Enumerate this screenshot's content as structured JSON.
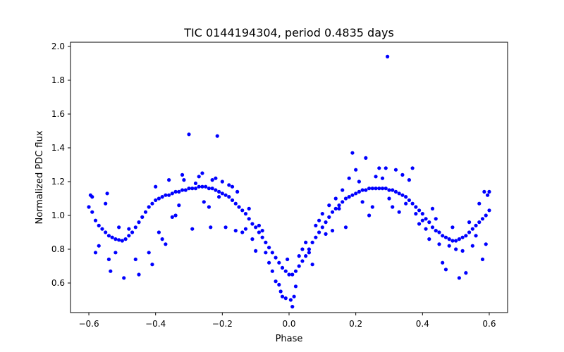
{
  "chart_data": {
    "type": "scatter",
    "title": "TIC 0144194304, period 0.4835 days",
    "xlabel": "Phase",
    "ylabel": "Normalized PDC flux",
    "xlim": [
      -0.655,
      0.655
    ],
    "ylim": [
      0.425,
      2.025
    ],
    "xticks": [
      -0.6,
      -0.4,
      -0.2,
      0.0,
      0.2,
      0.4,
      0.6
    ],
    "xtick_labels": [
      "−0.6",
      "−0.4",
      "−0.2",
      "0.0",
      "0.2",
      "0.4",
      "0.6"
    ],
    "yticks": [
      0.4,
      0.6,
      0.8,
      1.0,
      1.2,
      1.4,
      1.6,
      1.8,
      2.0
    ],
    "ytick_labels": [
      "0.4",
      "0.6",
      "0.8",
      "1.0",
      "1.2",
      "1.4",
      "1.6",
      "1.8",
      "2.0"
    ],
    "grid": false,
    "marker_color": "#0000ff",
    "series": [
      {
        "points": [
          [
            -0.6,
            1.05
          ],
          [
            -0.59,
            1.02
          ],
          [
            -0.58,
            0.97
          ],
          [
            -0.57,
            0.94
          ],
          [
            -0.56,
            0.92
          ],
          [
            -0.55,
            0.9
          ],
          [
            -0.54,
            0.88
          ],
          [
            -0.53,
            0.87
          ],
          [
            -0.52,
            0.86
          ],
          [
            -0.51,
            0.855
          ],
          [
            -0.5,
            0.85
          ],
          [
            -0.49,
            0.86
          ],
          [
            -0.48,
            0.88
          ],
          [
            -0.47,
            0.9
          ],
          [
            -0.46,
            0.93
          ],
          [
            -0.45,
            0.96
          ],
          [
            -0.44,
            0.99
          ],
          [
            -0.43,
            1.02
          ],
          [
            -0.42,
            1.05
          ],
          [
            -0.41,
            1.07
          ],
          [
            -0.4,
            1.09
          ],
          [
            -0.39,
            1.1
          ],
          [
            -0.38,
            1.11
          ],
          [
            -0.37,
            1.12
          ],
          [
            -0.36,
            1.12
          ],
          [
            -0.35,
            1.13
          ],
          [
            -0.34,
            1.14
          ],
          [
            -0.33,
            1.14
          ],
          [
            -0.32,
            1.15
          ],
          [
            -0.31,
            1.15
          ],
          [
            -0.3,
            1.16
          ],
          [
            -0.29,
            1.16
          ],
          [
            -0.28,
            1.16
          ],
          [
            -0.27,
            1.17
          ],
          [
            -0.26,
            1.17
          ],
          [
            -0.25,
            1.17
          ],
          [
            -0.24,
            1.16
          ],
          [
            -0.23,
            1.16
          ],
          [
            -0.22,
            1.15
          ],
          [
            -0.21,
            1.14
          ],
          [
            -0.2,
            1.13
          ],
          [
            -0.19,
            1.12
          ],
          [
            -0.18,
            1.11
          ],
          [
            -0.17,
            1.09
          ],
          [
            -0.16,
            1.07
          ],
          [
            -0.15,
            1.05
          ],
          [
            -0.14,
            1.03
          ],
          [
            -0.13,
            1.01
          ],
          [
            -0.12,
            0.98
          ],
          [
            -0.11,
            0.95
          ],
          [
            -0.1,
            0.93
          ],
          [
            -0.09,
            0.9
          ],
          [
            -0.08,
            0.87
          ],
          [
            -0.07,
            0.84
          ],
          [
            -0.06,
            0.81
          ],
          [
            -0.05,
            0.78
          ],
          [
            -0.04,
            0.75
          ],
          [
            -0.03,
            0.72
          ],
          [
            -0.02,
            0.69
          ],
          [
            -0.01,
            0.67
          ],
          [
            0.0,
            0.65
          ],
          [
            0.01,
            0.65
          ],
          [
            0.02,
            0.67
          ],
          [
            0.03,
            0.7
          ],
          [
            0.04,
            0.73
          ],
          [
            0.05,
            0.76
          ],
          [
            0.06,
            0.8
          ],
          [
            0.07,
            0.84
          ],
          [
            0.08,
            0.87
          ],
          [
            0.09,
            0.9
          ],
          [
            0.1,
            0.93
          ],
          [
            0.11,
            0.96
          ],
          [
            0.12,
            0.99
          ],
          [
            0.13,
            1.02
          ],
          [
            0.14,
            1.04
          ],
          [
            0.15,
            1.06
          ],
          [
            0.16,
            1.08
          ],
          [
            0.17,
            1.1
          ],
          [
            0.18,
            1.11
          ],
          [
            0.19,
            1.12
          ],
          [
            0.2,
            1.13
          ],
          [
            0.21,
            1.14
          ],
          [
            0.22,
            1.15
          ],
          [
            0.23,
            1.15
          ],
          [
            0.24,
            1.16
          ],
          [
            0.25,
            1.16
          ],
          [
            0.26,
            1.16
          ],
          [
            0.27,
            1.16
          ],
          [
            0.28,
            1.16
          ],
          [
            0.29,
            1.16
          ],
          [
            0.3,
            1.15
          ],
          [
            0.31,
            1.15
          ],
          [
            0.32,
            1.14
          ],
          [
            0.33,
            1.13
          ],
          [
            0.34,
            1.12
          ],
          [
            0.35,
            1.11
          ],
          [
            0.36,
            1.09
          ],
          [
            0.37,
            1.07
          ],
          [
            0.38,
            1.05
          ],
          [
            0.39,
            1.03
          ],
          [
            0.4,
            1.01
          ],
          [
            0.41,
            0.98
          ],
          [
            0.42,
            0.96
          ],
          [
            0.43,
            0.93
          ],
          [
            0.44,
            0.91
          ],
          [
            0.45,
            0.9
          ],
          [
            0.46,
            0.88
          ],
          [
            0.47,
            0.87
          ],
          [
            0.48,
            0.86
          ],
          [
            0.49,
            0.85
          ],
          [
            0.5,
            0.85
          ],
          [
            0.51,
            0.86
          ],
          [
            0.52,
            0.87
          ],
          [
            0.53,
            0.88
          ],
          [
            0.54,
            0.9
          ],
          [
            0.55,
            0.92
          ],
          [
            0.56,
            0.94
          ],
          [
            0.57,
            0.96
          ],
          [
            0.58,
            0.98
          ],
          [
            0.59,
            1.0
          ],
          [
            0.6,
            1.03
          ],
          [
            -0.595,
            1.12
          ],
          [
            -0.59,
            1.11
          ],
          [
            -0.58,
            0.78
          ],
          [
            -0.57,
            0.82
          ],
          [
            -0.55,
            1.07
          ],
          [
            -0.545,
            1.13
          ],
          [
            -0.54,
            0.74
          ],
          [
            -0.535,
            0.67
          ],
          [
            -0.52,
            0.78
          ],
          [
            -0.51,
            0.93
          ],
          [
            -0.495,
            0.63
          ],
          [
            -0.48,
            0.92
          ],
          [
            -0.46,
            0.74
          ],
          [
            -0.45,
            0.65
          ],
          [
            -0.42,
            0.78
          ],
          [
            -0.41,
            0.71
          ],
          [
            -0.4,
            1.17
          ],
          [
            -0.39,
            0.9
          ],
          [
            -0.38,
            0.86
          ],
          [
            -0.37,
            0.83
          ],
          [
            -0.36,
            1.21
          ],
          [
            -0.35,
            0.99
          ],
          [
            -0.34,
            1.0
          ],
          [
            -0.33,
            1.06
          ],
          [
            -0.32,
            1.24
          ],
          [
            -0.315,
            1.21
          ],
          [
            -0.3,
            1.48
          ],
          [
            -0.29,
            0.92
          ],
          [
            -0.28,
            1.19
          ],
          [
            -0.27,
            1.23
          ],
          [
            -0.26,
            1.25
          ],
          [
            -0.255,
            1.08
          ],
          [
            -0.24,
            1.05
          ],
          [
            -0.235,
            0.93
          ],
          [
            -0.23,
            1.21
          ],
          [
            -0.22,
            1.22
          ],
          [
            -0.215,
            1.47
          ],
          [
            -0.21,
            1.11
          ],
          [
            -0.2,
            1.2
          ],
          [
            -0.19,
            0.93
          ],
          [
            -0.18,
            1.18
          ],
          [
            -0.17,
            1.17
          ],
          [
            -0.16,
            0.91
          ],
          [
            -0.155,
            1.14
          ],
          [
            -0.14,
            0.9
          ],
          [
            -0.13,
            0.92
          ],
          [
            -0.12,
            1.04
          ],
          [
            -0.11,
            0.86
          ],
          [
            -0.1,
            0.79
          ],
          [
            -0.09,
            0.94
          ],
          [
            -0.08,
            0.91
          ],
          [
            -0.07,
            0.78
          ],
          [
            -0.06,
            0.72
          ],
          [
            -0.05,
            0.67
          ],
          [
            -0.04,
            0.61
          ],
          [
            -0.03,
            0.59
          ],
          [
            -0.025,
            0.55
          ],
          [
            -0.02,
            0.52
          ],
          [
            -0.01,
            0.51
          ],
          [
            -0.005,
            0.74
          ],
          [
            0.005,
            0.5
          ],
          [
            0.01,
            0.46
          ],
          [
            0.015,
            0.52
          ],
          [
            0.02,
            0.58
          ],
          [
            0.03,
            0.76
          ],
          [
            0.04,
            0.8
          ],
          [
            0.05,
            0.84
          ],
          [
            0.06,
            0.78
          ],
          [
            0.07,
            0.71
          ],
          [
            0.08,
            0.94
          ],
          [
            0.09,
            0.97
          ],
          [
            0.1,
            1.01
          ],
          [
            0.11,
            0.89
          ],
          [
            0.12,
            1.06
          ],
          [
            0.13,
            0.91
          ],
          [
            0.14,
            1.1
          ],
          [
            0.15,
            1.04
          ],
          [
            0.16,
            1.15
          ],
          [
            0.17,
            0.93
          ],
          [
            0.18,
            1.22
          ],
          [
            0.19,
            1.37
          ],
          [
            0.2,
            1.27
          ],
          [
            0.21,
            1.2
          ],
          [
            0.22,
            1.08
          ],
          [
            0.23,
            1.34
          ],
          [
            0.24,
            1.0
          ],
          [
            0.25,
            1.05
          ],
          [
            0.26,
            1.23
          ],
          [
            0.27,
            1.28
          ],
          [
            0.28,
            1.22
          ],
          [
            0.29,
            1.28
          ],
          [
            0.295,
            1.94
          ],
          [
            0.3,
            1.1
          ],
          [
            0.31,
            1.05
          ],
          [
            0.32,
            1.27
          ],
          [
            0.33,
            1.02
          ],
          [
            0.34,
            1.24
          ],
          [
            0.35,
            1.07
          ],
          [
            0.36,
            1.21
          ],
          [
            0.37,
            1.28
          ],
          [
            0.38,
            1.01
          ],
          [
            0.39,
            0.95
          ],
          [
            0.4,
            0.97
          ],
          [
            0.41,
            0.92
          ],
          [
            0.42,
            0.86
          ],
          [
            0.43,
            1.04
          ],
          [
            0.44,
            0.98
          ],
          [
            0.45,
            0.83
          ],
          [
            0.46,
            0.72
          ],
          [
            0.47,
            0.68
          ],
          [
            0.48,
            0.82
          ],
          [
            0.49,
            0.93
          ],
          [
            0.5,
            0.8
          ],
          [
            0.51,
            0.63
          ],
          [
            0.52,
            0.79
          ],
          [
            0.53,
            0.66
          ],
          [
            0.54,
            0.96
          ],
          [
            0.55,
            0.82
          ],
          [
            0.56,
            0.88
          ],
          [
            0.57,
            1.07
          ],
          [
            0.58,
            0.74
          ],
          [
            0.585,
            1.14
          ],
          [
            0.59,
            0.83
          ],
          [
            0.595,
            1.12
          ],
          [
            0.6,
            1.14
          ]
        ]
      }
    ]
  }
}
